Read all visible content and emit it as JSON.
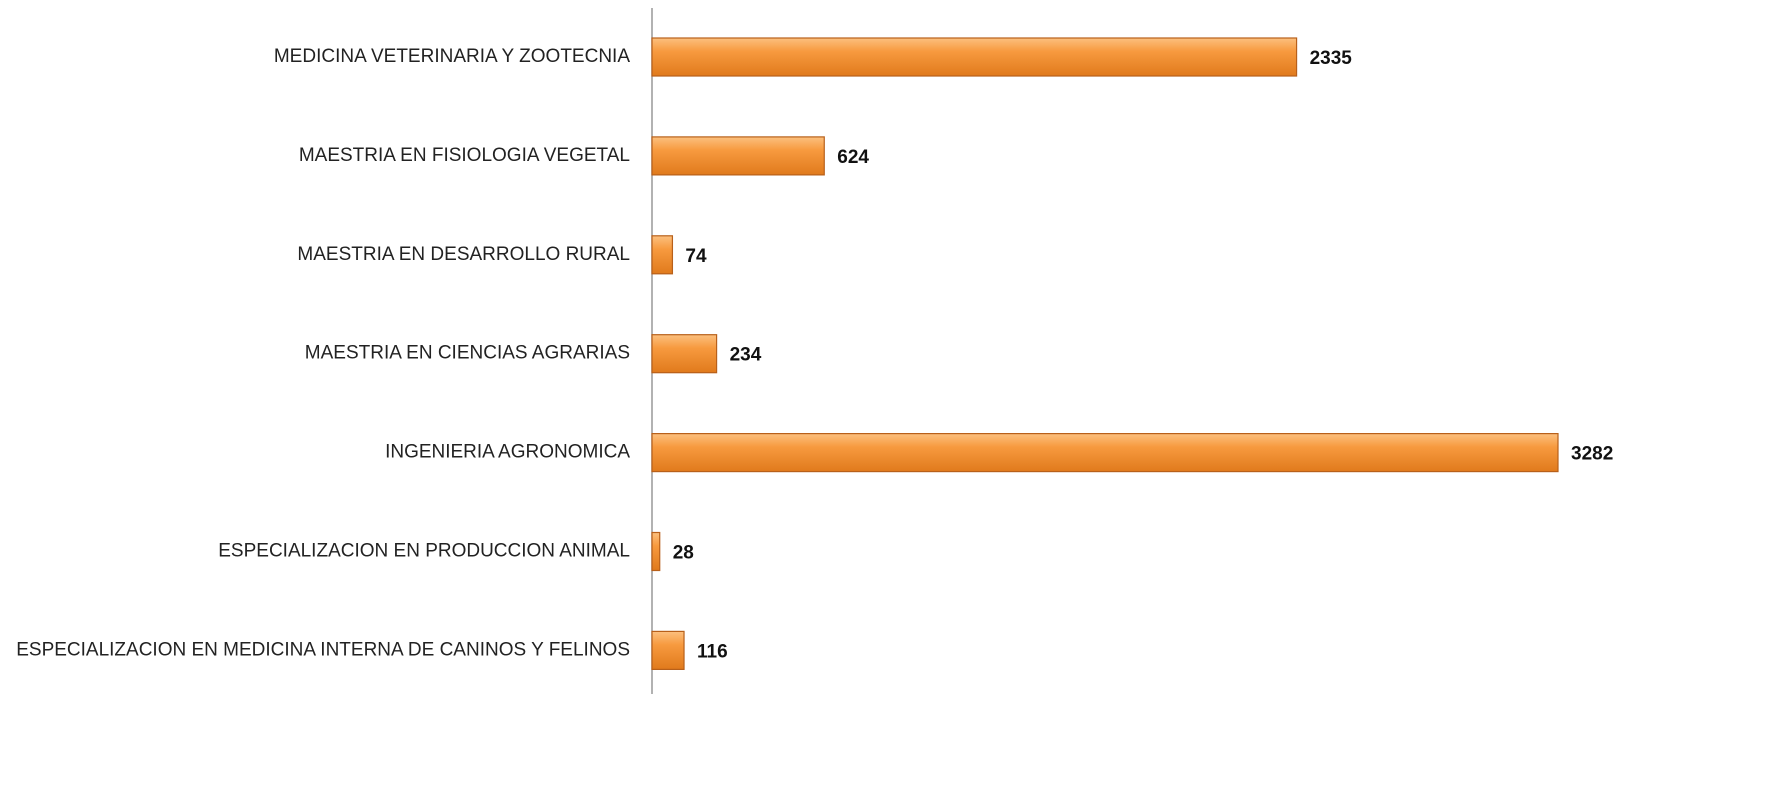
{
  "chart_data": {
    "type": "bar",
    "orientation": "horizontal",
    "categories": [
      "MEDICINA VETERINARIA Y ZOOTECNIA",
      "MAESTRIA EN FISIOLOGIA VEGETAL",
      "MAESTRIA EN DESARROLLO RURAL",
      "MAESTRIA EN CIENCIAS AGRARIAS",
      "INGENIERIA AGRONOMICA",
      "ESPECIALIZACION EN PRODUCCION ANIMAL",
      "ESPECIALIZACION EN MEDICINA INTERNA DE CANINOS Y FELINOS"
    ],
    "values": [
      2335,
      624,
      74,
      234,
      3282,
      28,
      116
    ],
    "color": "#f38a2a"
  }
}
